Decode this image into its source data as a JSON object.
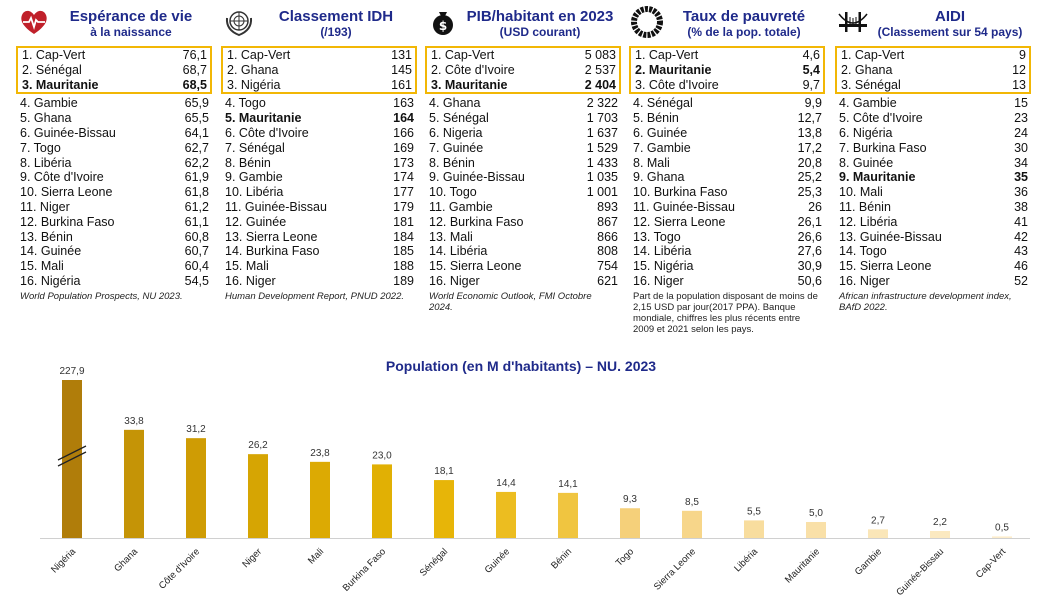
{
  "panels": [
    {
      "icon": "heart-pulse-icon",
      "title1": "Espérance de vie",
      "title2": "à la naissance",
      "top3": [
        {
          "label": "1. Cap-Vert",
          "value": "76,1",
          "bold": false
        },
        {
          "label": "2. Sénégal",
          "value": "68,7",
          "bold": false
        },
        {
          "label": "3. Mauritanie",
          "value": "68,5",
          "bold": true
        }
      ],
      "rest": [
        {
          "label": "4. Gambie",
          "value": "65,9",
          "bold": false
        },
        {
          "label": "5. Ghana",
          "value": "65,5",
          "bold": false
        },
        {
          "label": "6. Guinée-Bissau",
          "value": "64,1",
          "bold": false
        },
        {
          "label": "7. Togo",
          "value": "62,7",
          "bold": false
        },
        {
          "label": "8. Libéria",
          "value": "62,2",
          "bold": false
        },
        {
          "label": "9. Côte d'Ivoire",
          "value": "61,9",
          "bold": false
        },
        {
          "label": "10. Sierra Leone",
          "value": "61,8",
          "bold": false
        },
        {
          "label": "11. Niger",
          "value": "61,2",
          "bold": false
        },
        {
          "label": "12. Burkina Faso",
          "value": "61,1",
          "bold": false
        },
        {
          "label": "13. Bénin",
          "value": "60,8",
          "bold": false
        },
        {
          "label": "14. Guinée",
          "value": "60,7",
          "bold": false
        },
        {
          "label": "15. Mali",
          "value": "60,4",
          "bold": false
        },
        {
          "label": "16. Nigéria",
          "value": "54,5",
          "bold": false
        }
      ],
      "source": "World Population Prospects, NU 2023.",
      "source_italic": true
    },
    {
      "icon": "un-emblem-icon",
      "title1": "Classement IDH",
      "title2": "(/193)",
      "top3": [
        {
          "label": "1. Cap-Vert",
          "value": "131",
          "bold": false
        },
        {
          "label": "2. Ghana",
          "value": "145",
          "bold": false
        },
        {
          "label": "3. Nigéria",
          "value": "161",
          "bold": false
        }
      ],
      "rest": [
        {
          "label": "4. Togo",
          "value": "163",
          "bold": false
        },
        {
          "label": "5. Mauritanie",
          "value": "164",
          "bold": true
        },
        {
          "label": "6. Côte d'Ivoire",
          "value": "166",
          "bold": false
        },
        {
          "label": "7. Sénégal",
          "value": "169",
          "bold": false
        },
        {
          "label": "8. Bénin",
          "value": "173",
          "bold": false
        },
        {
          "label": "9. Gambie",
          "value": "174",
          "bold": false
        },
        {
          "label": "10. Libéria",
          "value": "177",
          "bold": false
        },
        {
          "label": "11. Guinée-Bissau",
          "value": "179",
          "bold": false
        },
        {
          "label": "12. Guinée",
          "value": "181",
          "bold": false
        },
        {
          "label": "13. Sierra Leone",
          "value": "184",
          "bold": false
        },
        {
          "label": "14. Burkina Faso",
          "value": "185",
          "bold": false
        },
        {
          "label": "15. Mali",
          "value": "188",
          "bold": false
        },
        {
          "label": "16. Niger",
          "value": "189",
          "bold": false
        }
      ],
      "source": "Human Development Report, PNUD 2022.",
      "source_italic": true
    },
    {
      "icon": "money-bag-icon",
      "title1": "PIB/habitant en 2023",
      "title2": "(USD courant)",
      "top3": [
        {
          "label": "1. Cap-Vert",
          "value": "5 083",
          "bold": false
        },
        {
          "label": "2. Côte d'Ivoire",
          "value": "2 537",
          "bold": false
        },
        {
          "label": "3. Mauritanie",
          "value": "2 404",
          "bold": true
        }
      ],
      "rest": [
        {
          "label": "4. Ghana",
          "value": "2 322",
          "bold": false
        },
        {
          "label": "5. Sénégal",
          "value": "1 703",
          "bold": false
        },
        {
          "label": "6. Nigeria",
          "value": "1 637",
          "bold": false
        },
        {
          "label": "7. Guinée",
          "value": "1 529",
          "bold": false
        },
        {
          "label": "8. Bénin",
          "value": "1 433",
          "bold": false
        },
        {
          "label": "9. Guinée-Bissau",
          "value": "1 035",
          "bold": false
        },
        {
          "label": "10. Togo",
          "value": "1 001",
          "bold": false
        },
        {
          "label": "11. Gambie",
          "value": "893",
          "bold": false
        },
        {
          "label": "12. Burkina Faso",
          "value": "867",
          "bold": false
        },
        {
          "label": "13. Mali",
          "value": "866",
          "bold": false
        },
        {
          "label": "14. Libéria",
          "value": "808",
          "bold": false
        },
        {
          "label": "15. Sierra Leone",
          "value": "754",
          "bold": false
        },
        {
          "label": "16. Niger",
          "value": "621",
          "bold": false
        }
      ],
      "source": "World Economic Outlook, FMI Octobre 2024.",
      "source_italic": true
    },
    {
      "icon": "sdg-wheel-icon",
      "title1": "Taux de pauvreté",
      "title2": "(% de la pop. totale)",
      "top3": [
        {
          "label": "1. Cap-Vert",
          "value": "4,6",
          "bold": false
        },
        {
          "label": "2. Mauritanie",
          "value": "5,4",
          "bold": true
        },
        {
          "label": "3. Côte d'Ivoire",
          "value": "9,7",
          "bold": false
        }
      ],
      "rest": [
        {
          "label": "4. Sénégal",
          "value": "9,9",
          "bold": false
        },
        {
          "label": "5. Bénin",
          "value": "12,7",
          "bold": false
        },
        {
          "label": "6. Guinée",
          "value": "13,8",
          "bold": false
        },
        {
          "label": "7. Gambie",
          "value": "17,2",
          "bold": false
        },
        {
          "label": "8. Mali",
          "value": "20,8",
          "bold": false
        },
        {
          "label": "9. Ghana",
          "value": "25,2",
          "bold": false
        },
        {
          "label": "10. Burkina Faso",
          "value": "25,3",
          "bold": false
        },
        {
          "label": "11. Guinée-Bissau",
          "value": "26",
          "bold": false
        },
        {
          "label": "12. Sierra Leone",
          "value": "26,1",
          "bold": false
        },
        {
          "label": "13. Togo",
          "value": "26,6",
          "bold": false
        },
        {
          "label": "14. Libéria",
          "value": "27,6",
          "bold": false
        },
        {
          "label": "15. Nigéria",
          "value": "30,9",
          "bold": false
        },
        {
          "label": "16. Niger",
          "value": "50,6",
          "bold": false
        }
      ],
      "source": "Part de la population disposant de moins de 2,15 USD par jour(2017 PPA). Banque mondiale, chiffres les plus récents entre 2009 et 2021 selon les pays.",
      "source_italic": false
    },
    {
      "icon": "bridge-icon",
      "title1": "AIDI",
      "title2": "(Classement sur 54 pays)",
      "top3": [
        {
          "label": "1. Cap-Vert",
          "value": "9",
          "bold": false
        },
        {
          "label": "2. Ghana",
          "value": "12",
          "bold": false
        },
        {
          "label": "3. Sénégal",
          "value": "13",
          "bold": false
        }
      ],
      "rest": [
        {
          "label": "4. Gambie",
          "value": "15",
          "bold": false
        },
        {
          "label": "5. Côte d'Ivoire",
          "value": "23",
          "bold": false
        },
        {
          "label": "6. Nigéria",
          "value": "24",
          "bold": false
        },
        {
          "label": "7. Burkina Faso",
          "value": "30",
          "bold": false
        },
        {
          "label": "8. Guinée",
          "value": "34",
          "bold": false
        },
        {
          "label": "9. Mauritanie",
          "value": "35",
          "bold": true
        },
        {
          "label": "10. Mali",
          "value": "36",
          "bold": false
        },
        {
          "label": "11. Bénin",
          "value": "38",
          "bold": false
        },
        {
          "label": "12. Libéria",
          "value": "41",
          "bold": false
        },
        {
          "label": "13. Guinée-Bissau",
          "value": "42",
          "bold": false
        },
        {
          "label": "14. Togo",
          "value": "43",
          "bold": false
        },
        {
          "label": "15. Sierra Leone",
          "value": "46",
          "bold": false
        },
        {
          "label": "16. Niger",
          "value": "52",
          "bold": false
        }
      ],
      "source": "African infrastructure development index, BAfD 2022.",
      "source_italic": true
    }
  ],
  "chart_data": {
    "type": "bar",
    "title": "Population (en M d'habitants) – NU. 2023",
    "categories": [
      "Nigéria",
      "Ghana",
      "Côte d'Ivoire",
      "Niger",
      "Mali",
      "Burkina Faso",
      "Sénégal",
      "Guinée",
      "Bénin",
      "Togo",
      "Sierra Leone",
      "Libéria",
      "Mauritanie",
      "Gambie",
      "Guinée-Bissau",
      "Cap-Vert"
    ],
    "values": [
      227.9,
      33.8,
      31.2,
      26.2,
      23.8,
      23.0,
      18.1,
      14.4,
      14.1,
      9.3,
      8.5,
      5.5,
      5.0,
      2.7,
      2.2,
      0.5
    ],
    "value_labels": [
      "227,9",
      "33,8",
      "31,2",
      "26,2",
      "23,8",
      "23,0",
      "18,1",
      "14,4",
      "14,1",
      "9,3",
      "8,5",
      "5,5",
      "5,0",
      "2,7",
      "2,2",
      "0,5"
    ],
    "axis_break": {
      "bar": "Nigéria"
    },
    "colors": [
      "#b07d0a",
      "#c59406",
      "#cf9c04",
      "#d6a503",
      "#dcaa03",
      "#e1b004",
      "#e7b508",
      "#ecbd20",
      "#f0c540",
      "#f5d07a",
      "#f7d68a",
      "#f8dd9e",
      "#f9e0a8",
      "#fae6b8",
      "#fbe9c0",
      "#fcedcc"
    ],
    "ylim": [
      0,
      40
    ],
    "grid": false,
    "legend": "none"
  },
  "colors": {
    "title": "#1f2a8a",
    "highlight_border": "#f2b705"
  }
}
